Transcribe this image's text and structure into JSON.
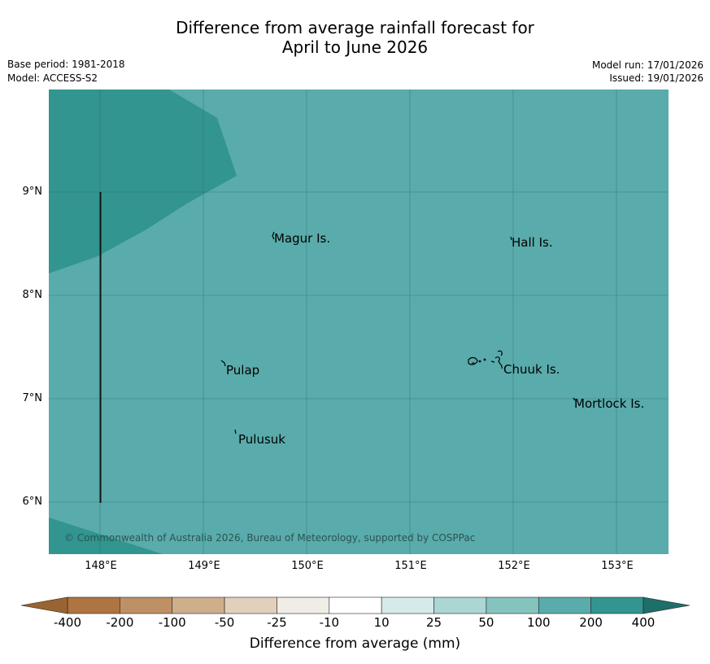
{
  "title_line1": "Difference from average rainfall forecast for",
  "title_line2": "April to June 2026",
  "base_period": "Base period: 1981-2018",
  "model": "Model: ACCESS-S2",
  "model_run": "Model run: 17/01/2026",
  "issued": "Issued: 19/01/2026",
  "latitudes": [
    "9°N",
    "8°N",
    "7°N",
    "6°N"
  ],
  "longitudes": [
    "148°E",
    "149°E",
    "150°E",
    "151°E",
    "152°E",
    "153°E"
  ],
  "places": {
    "magur": "Magur Is.",
    "hall": "Hall Is.",
    "pulap": "Pulap",
    "chuuk": "Chuuk Is.",
    "mortlock": "Mortlock Is.",
    "pulusuk": "Pulusuk"
  },
  "copyright": "© Commonwealth of Australia 2026, Bureau of Meteorology, supported by COSPPac",
  "colorbar": {
    "label": "Difference from average (mm)",
    "ticks": [
      "-400",
      "-200",
      "-100",
      "-50",
      "-25",
      "-10",
      "10",
      "25",
      "50",
      "100",
      "200",
      "400"
    ],
    "colors": [
      "#ae7441",
      "#be9065",
      "#cfae8c",
      "#e2d0bc",
      "#f0ede6",
      "#ffffff",
      "#d6ebe9",
      "#acd6d3",
      "#85c3bf",
      "#5aabab",
      "#32958f",
      "#1e6e6a"
    ],
    "low_extend_color": "#9a6332",
    "high_extend_color": "#1e6e6a"
  },
  "map_colors": {
    "background": "#5aabab",
    "wetter": "#32958f"
  }
}
